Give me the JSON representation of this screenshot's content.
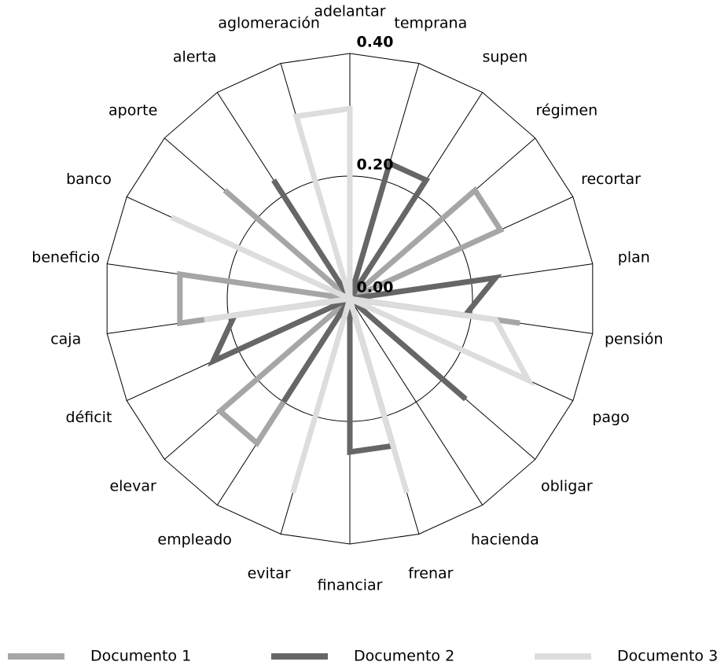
{
  "chart_data": {
    "type": "radar",
    "categories": [
      "adelantar",
      "temprana",
      "supen",
      "régimen",
      "recortar",
      "plan",
      "pensión",
      "pago",
      "obligar",
      "hacienda",
      "frenar",
      "financiar",
      "evitar",
      "empleado",
      "elevar",
      "déficit",
      "caja",
      "beneficio",
      "banco",
      "aporte",
      "alerta",
      "aglomeración"
    ],
    "series": [
      {
        "name": "Documento 1",
        "color": "#a6a6a6",
        "values": [
          0,
          0,
          0,
          0.27,
          0.27,
          0,
          0.28,
          0,
          0,
          0,
          0,
          0,
          0,
          0.28,
          0.28,
          0,
          0.28,
          0.28,
          0,
          0.27,
          0,
          0
        ]
      },
      {
        "name": "Documento 2",
        "color": "#666666",
        "values": [
          0,
          0.23,
          0.23,
          0,
          0,
          0.24,
          0.19,
          0,
          0.25,
          0,
          0.25,
          0.25,
          0,
          0.2,
          0,
          0.245,
          0.19,
          0,
          0,
          0,
          0.23,
          0
        ]
      },
      {
        "name": "Documento 3",
        "color": "#dddddd",
        "values": [
          0.31,
          0,
          0,
          0,
          0,
          0,
          0.24,
          0.32,
          0,
          0,
          0.33,
          0,
          0.33,
          0,
          0,
          0,
          0.24,
          0,
          0.32,
          0,
          0,
          0.31
        ]
      }
    ],
    "ylim": [
      0,
      0.4
    ],
    "yticks": [
      {
        "value": 0,
        "label": "0.00"
      },
      {
        "value": 0.2,
        "label": "0.20"
      },
      {
        "value": 0.4,
        "label": "0.40"
      }
    ]
  }
}
